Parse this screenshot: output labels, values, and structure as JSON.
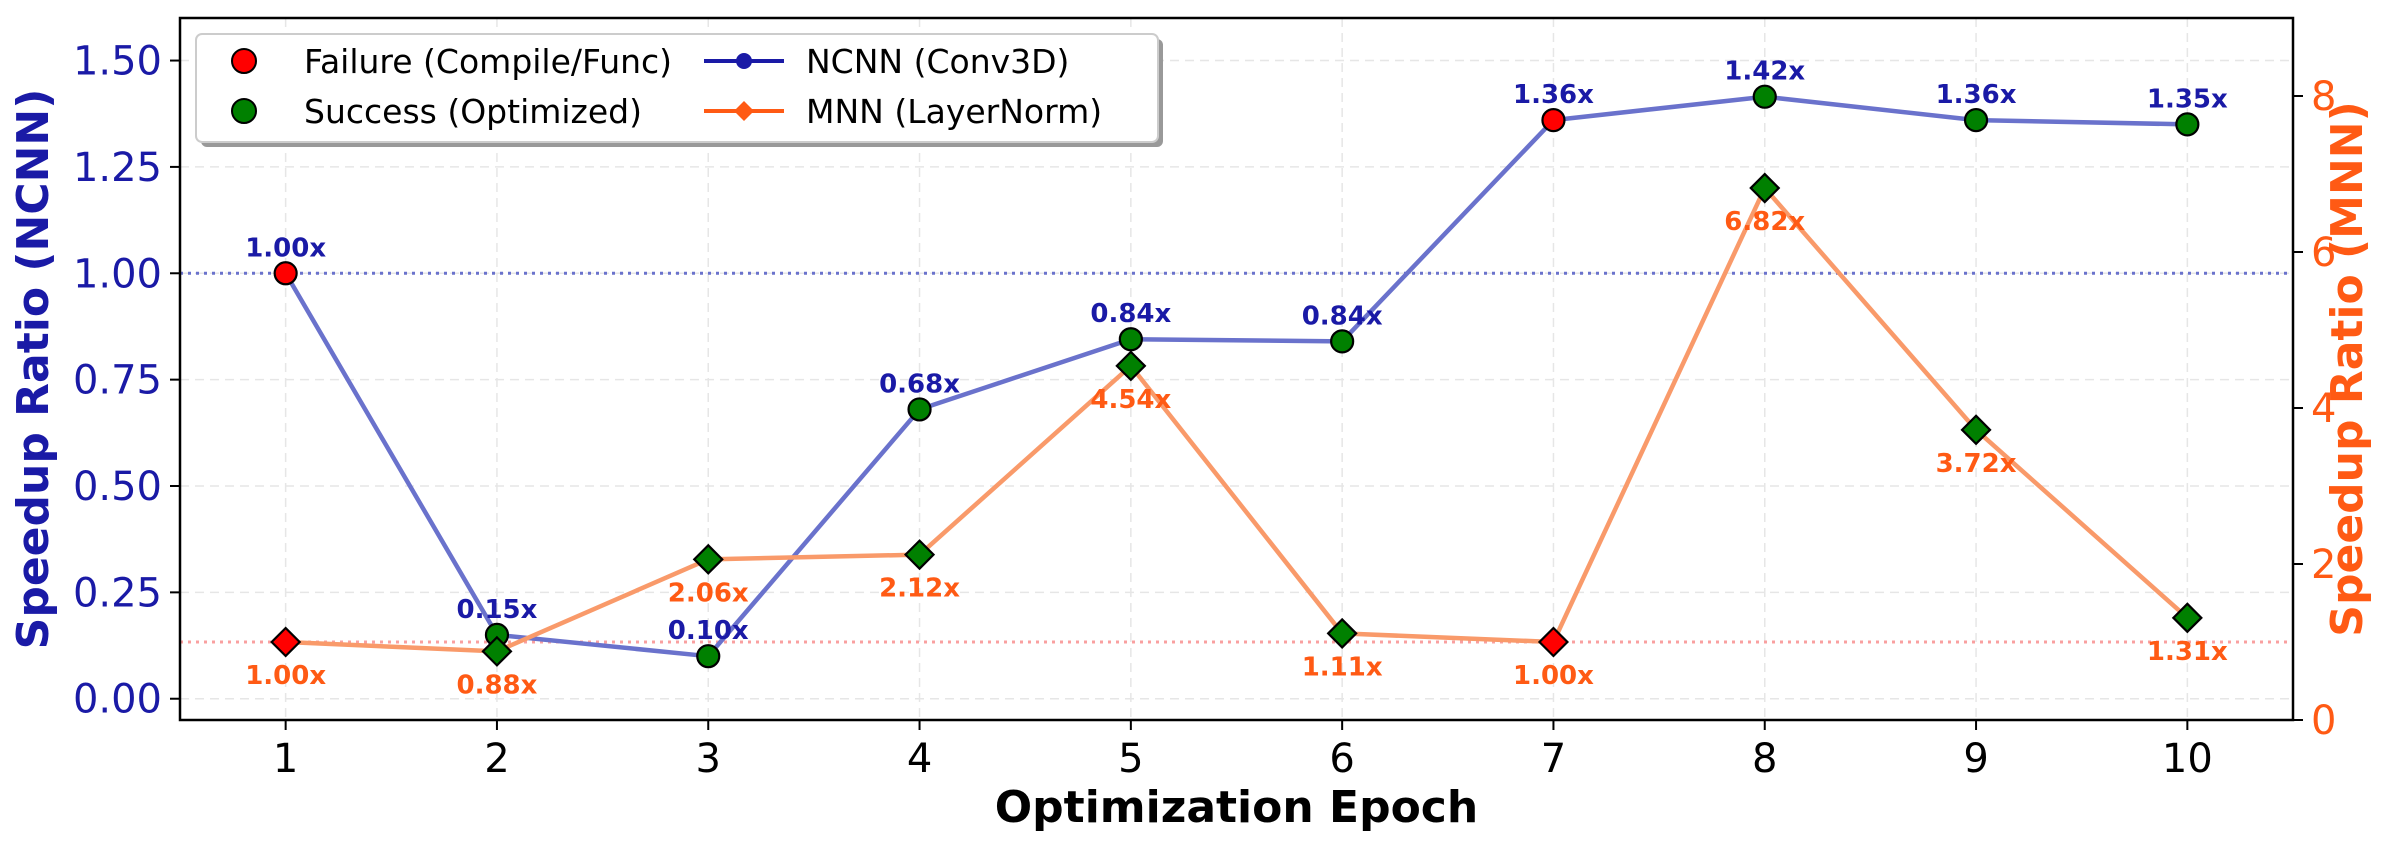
{
  "chart_data": {
    "type": "line",
    "x": [
      1,
      2,
      3,
      4,
      5,
      6,
      7,
      8,
      9,
      10
    ],
    "xlabel": "Optimization Epoch",
    "xlim": [
      0.5,
      10.5
    ],
    "x_ticks": [
      "1",
      "2",
      "3",
      "4",
      "5",
      "6",
      "7",
      "8",
      "9",
      "10"
    ],
    "left_axis": {
      "label": "Speedup Ratio (NCNN)",
      "ylim": [
        -0.05,
        1.6
      ],
      "ticks": [
        0.0,
        0.25,
        0.5,
        0.75,
        1.0,
        1.25,
        1.5
      ],
      "tick_labels": [
        "0.00",
        "0.25",
        "0.50",
        "0.75",
        "1.00",
        "1.25",
        "1.50"
      ],
      "color": "#1a1aa6"
    },
    "right_axis": {
      "label": "Speedup Ratio (MNN)",
      "ylim": [
        0,
        9.0
      ],
      "ticks": [
        0,
        2,
        4,
        6,
        8
      ],
      "tick_labels": [
        "0",
        "2",
        "4",
        "6",
        "8"
      ],
      "color": "#ff5a14"
    },
    "series": [
      {
        "name": "NCNN (Conv3D)",
        "axis": "left",
        "marker": "circle",
        "line_color": "#6a72cc",
        "legend_color": "#1a1aa6",
        "label_color": "#1a1aa6",
        "values": [
          1.0,
          0.15,
          0.1,
          0.68,
          0.845,
          0.84,
          1.36,
          1.415,
          1.36,
          1.35
        ],
        "labels": [
          "1.00x",
          "0.15x",
          "0.10x",
          "0.68x",
          "0.84x",
          "0.84x",
          "1.36x",
          "1.42x",
          "1.36x",
          "1.35x"
        ],
        "status": [
          "failure",
          "success",
          "success",
          "success",
          "success",
          "success",
          "failure",
          "success",
          "success",
          "success"
        ]
      },
      {
        "name": "MNN (LayerNorm)",
        "axis": "right",
        "marker": "diamond",
        "line_color": "#f99a6a",
        "legend_color": "#ff5a14",
        "label_color": "#ff5a14",
        "values": [
          1.0,
          0.88,
          2.06,
          2.12,
          4.54,
          1.11,
          1.0,
          6.82,
          3.72,
          1.31
        ],
        "labels": [
          "1.00x",
          "0.88x",
          "2.06x",
          "2.12x",
          "4.54x",
          "1.11x",
          "1.00x",
          "6.82x",
          "3.72x",
          "1.31x"
        ],
        "status": [
          "failure",
          "success",
          "success",
          "success",
          "success",
          "success",
          "failure",
          "success",
          "success",
          "success"
        ]
      }
    ],
    "reference_lines": [
      {
        "axis": "left",
        "value": 1.0,
        "color": "#6a72cc",
        "style": "dotted"
      },
      {
        "axis": "right",
        "value": 1.0,
        "color": "#f9a0a0",
        "style": "dotted"
      }
    ],
    "status_colors": {
      "failure": "#ff0000",
      "success": "#008000"
    },
    "legend": {
      "placement": "top-left",
      "entries": [
        {
          "label": "Failure (Compile/Func)",
          "kind": "failure"
        },
        {
          "label": "Success (Optimized)",
          "kind": "success"
        },
        {
          "label": "NCNN (Conv3D)",
          "kind": "ncnn"
        },
        {
          "label": "MNN (LayerNorm)",
          "kind": "mnn"
        }
      ]
    },
    "grid": true
  }
}
